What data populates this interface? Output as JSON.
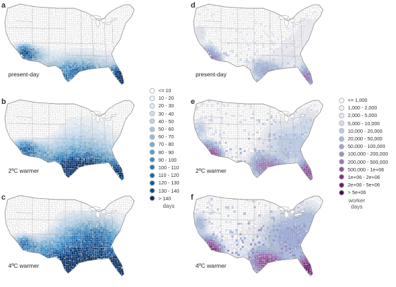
{
  "panels": [
    {
      "id": "a",
      "label": "a",
      "scenario": "present-day",
      "map": "days",
      "level": 0
    },
    {
      "id": "b",
      "label": "b",
      "scenario": "2ºC warmer",
      "map": "days",
      "level": 1
    },
    {
      "id": "c",
      "label": "c",
      "scenario": "4ºC warmer",
      "map": "days",
      "level": 2
    },
    {
      "id": "d",
      "label": "d",
      "scenario": "present-day",
      "map": "worker",
      "level": 0
    },
    {
      "id": "e",
      "label": "e",
      "scenario": "2ºC warmer",
      "map": "worker",
      "level": 1
    },
    {
      "id": "f",
      "label": "f",
      "scenario": "4ºC warmer",
      "map": "worker",
      "level": 2
    }
  ],
  "legend_days": {
    "unit": "days",
    "items": [
      {
        "label": "<= 10",
        "color": "#ffffff"
      },
      {
        "label": "10 - 20",
        "color": "#eef4fb"
      },
      {
        "label": "20 - 30",
        "color": "#deebf7"
      },
      {
        "label": "30 - 40",
        "color": "#cde0f1"
      },
      {
        "label": "40 - 50",
        "color": "#b9d5ec"
      },
      {
        "label": "50 - 60",
        "color": "#a3c9e5"
      },
      {
        "label": "60 - 70",
        "color": "#8abcdd"
      },
      {
        "label": "70 - 80",
        "color": "#70acd5"
      },
      {
        "label": "80 - 90",
        "color": "#579ccc"
      },
      {
        "label": "90 - 100",
        "color": "#408bc3"
      },
      {
        "label": "100 - 110",
        "color": "#2f78b6"
      },
      {
        "label": "110 - 120",
        "color": "#2166a8"
      },
      {
        "label": "120 - 130",
        "color": "#16579a"
      },
      {
        "label": "130 - 140",
        "color": "#0e4888"
      },
      {
        "label": "> 140",
        "color": "#082f66"
      }
    ]
  },
  "legend_worker": {
    "unit": "worker\ndays",
    "items": [
      {
        "label": "<= 1,000",
        "color": "#ffffff"
      },
      {
        "label": "1,000 - 2,000",
        "color": "#f2f0f7"
      },
      {
        "label": "2,000 - 5,000",
        "color": "#e4e8f4"
      },
      {
        "label": "5,000 - 10,000",
        "color": "#d2dcee"
      },
      {
        "label": "10,000 - 20,000",
        "color": "#bccce6"
      },
      {
        "label": "20,000 - 50,000",
        "color": "#a6b8de"
      },
      {
        "label": "50,000 - 100,000",
        "color": "#99a7d4"
      },
      {
        "label": "100,000 - 200,000",
        "color": "#9890c8"
      },
      {
        "label": "200,000 - 500,000",
        "color": "#9b74ba"
      },
      {
        "label": "500,000 - 1e+06",
        "color": "#95519f"
      },
      {
        "label": "1e+06 - 2e+06",
        "color": "#842f8a"
      },
      {
        "label": "2e+06 - 5e+06",
        "color": "#6a1a72"
      },
      {
        "label": "> 5e+06",
        "color": "#4a0d50"
      }
    ]
  }
}
